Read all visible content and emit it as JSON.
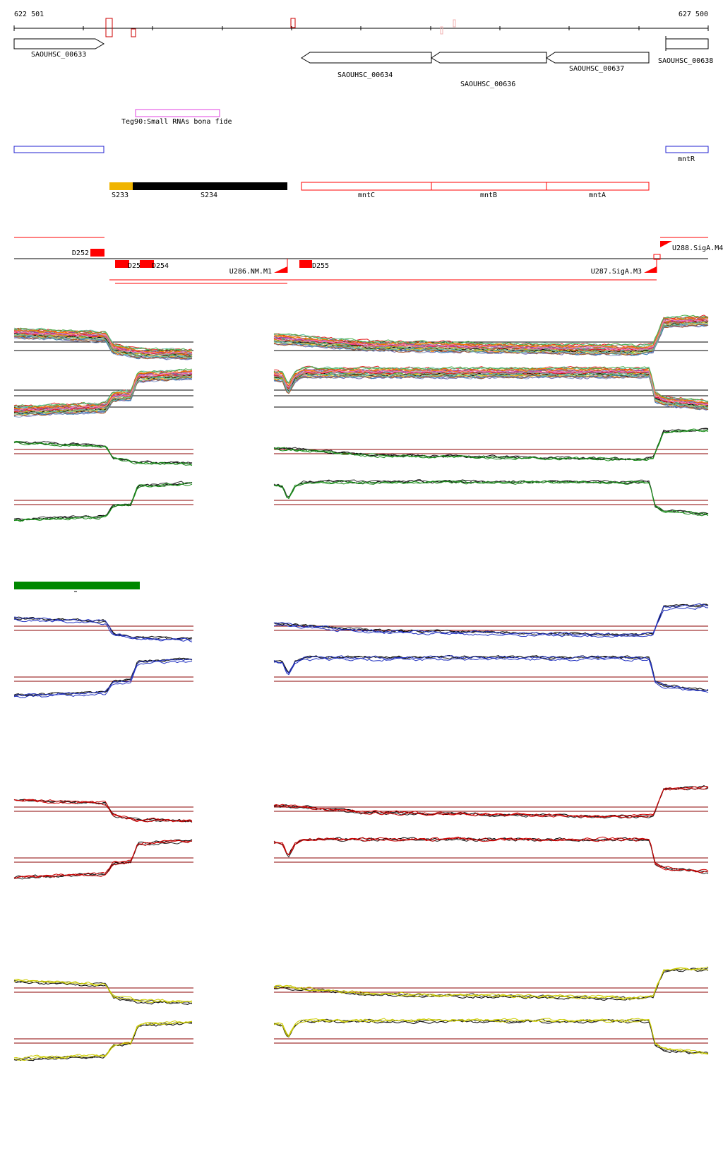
{
  "coords": {
    "start": "622 501",
    "end": "627 500"
  },
  "genes": [
    {
      "label": "SAOUHSC_00633",
      "strand": "+"
    },
    {
      "label": "SAOUHSC_00634",
      "strand": "-"
    },
    {
      "label": "SAOUHSC_00636",
      "strand": "-"
    },
    {
      "label": "SAOUHSC_00637",
      "strand": "-"
    },
    {
      "label": "SAOUHSC_00638",
      "strand": "+"
    }
  ],
  "features": {
    "small_rna": "Teg90:Small RNAs bona fide",
    "mntR": "mntR",
    "segments": [
      "S233",
      "S234"
    ],
    "operon": [
      "mntC",
      "mntB",
      "mntA"
    ]
  },
  "transcription": {
    "downshifts": [
      "D252",
      "D253",
      "D254",
      "D255"
    ],
    "upshifts": [
      "U286.NM.M1",
      "U287.SigA.M3",
      "U288.SigA.M4"
    ]
  },
  "colors": {
    "ruler": "#000000",
    "gene_outline": "#000000",
    "small_rna": "#e040e0",
    "mntR": "#2020d0",
    "segment_a": "#f0b400",
    "segment_b": "#000000",
    "operon": "#ff0000",
    "shift": "#ff0000",
    "condition_bar": "#008800",
    "panel_hline": "#8b0000",
    "blue_series": "#2030c0",
    "red_series": "#cc0000",
    "yellow_series": "#cccc00",
    "green_series": "#1a8c1a"
  }
}
